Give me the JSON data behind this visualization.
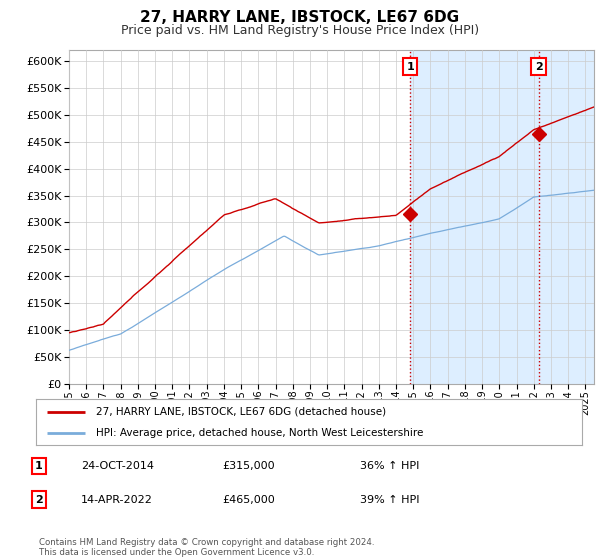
{
  "title": "27, HARRY LANE, IBSTOCK, LE67 6DG",
  "subtitle": "Price paid vs. HM Land Registry's House Price Index (HPI)",
  "red_label": "27, HARRY LANE, IBSTOCK, LE67 6DG (detached house)",
  "blue_label": "HPI: Average price, detached house, North West Leicestershire",
  "annotation1_date": "24-OCT-2014",
  "annotation1_price": "£315,000",
  "annotation1_hpi": "36% ↑ HPI",
  "annotation2_date": "14-APR-2022",
  "annotation2_price": "£465,000",
  "annotation2_hpi": "39% ↑ HPI",
  "footer": "Contains HM Land Registry data © Crown copyright and database right 2024.\nThis data is licensed under the Open Government Licence v3.0.",
  "ylim": [
    0,
    620000
  ],
  "yticks": [
    0,
    50000,
    100000,
    150000,
    200000,
    250000,
    300000,
    350000,
    400000,
    450000,
    500000,
    550000,
    600000
  ],
  "xlim_start": 1995,
  "xlim_end": 2025.5,
  "vline1_x": 2014.82,
  "vline2_x": 2022.28,
  "marker1_y": 315000,
  "marker2_y": 465000,
  "shade_color": "#ddeeff",
  "background_color": "#ffffff",
  "grid_color": "#cccccc",
  "red_color": "#cc0000",
  "blue_color": "#7aacdb",
  "vline_color": "#cc0000",
  "title_fontsize": 11,
  "subtitle_fontsize": 9
}
